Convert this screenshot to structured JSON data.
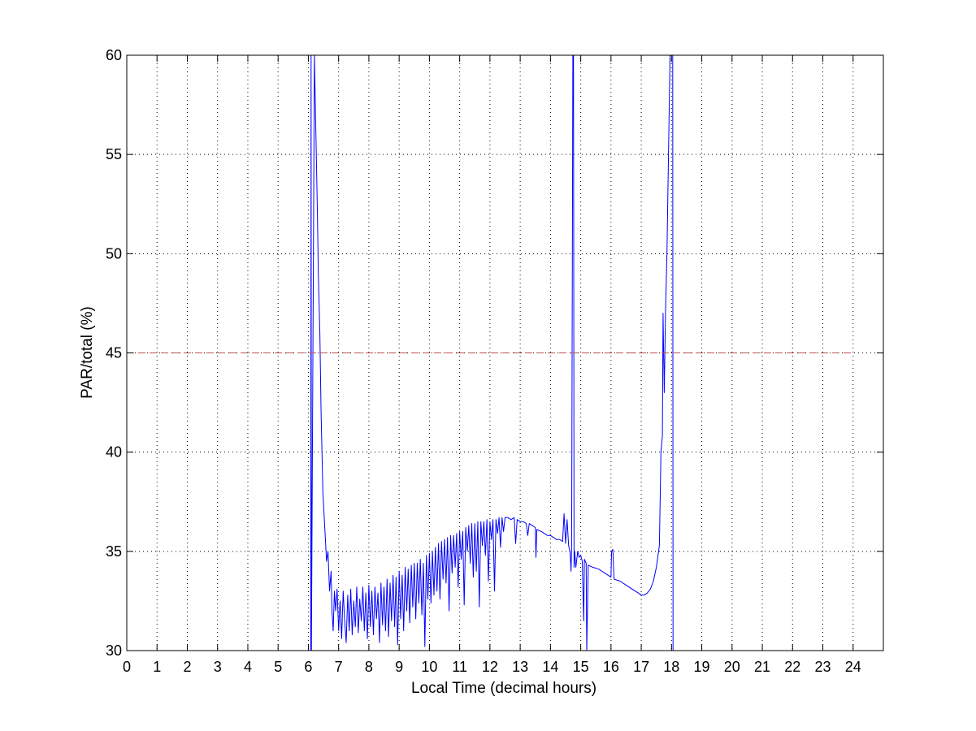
{
  "chart_data": {
    "type": "line",
    "title": "",
    "xlabel": "Local Time (decimal hours)",
    "ylabel": "PAR/total (%)",
    "xlim": [
      0,
      25
    ],
    "ylim": [
      30,
      60
    ],
    "xticks": [
      0,
      1,
      2,
      3,
      4,
      5,
      6,
      7,
      8,
      9,
      10,
      11,
      12,
      13,
      14,
      15,
      16,
      17,
      18,
      19,
      20,
      21,
      22,
      23,
      24
    ],
    "yticks": [
      30,
      35,
      40,
      45,
      50,
      55,
      60
    ],
    "grid": true,
    "legend": "none",
    "series": [
      {
        "color": "#0000ff",
        "points": [
          [
            6.08,
            30
          ],
          [
            6.09,
            60
          ],
          [
            6.1,
            30
          ],
          [
            6.2,
            60
          ],
          [
            6.3,
            52
          ],
          [
            6.33,
            49
          ],
          [
            6.38,
            46
          ],
          [
            6.42,
            42
          ],
          [
            6.48,
            38
          ],
          [
            6.55,
            36
          ],
          [
            6.6,
            34.5
          ],
          [
            6.65,
            35
          ],
          [
            6.7,
            33
          ],
          [
            6.75,
            34
          ],
          [
            6.78,
            32
          ],
          [
            6.82,
            31
          ],
          [
            6.86,
            33
          ],
          [
            6.9,
            32
          ],
          [
            6.95,
            33.1
          ],
          [
            7.0,
            31
          ],
          [
            7.05,
            32.5
          ],
          [
            7.1,
            30.6
          ],
          [
            7.15,
            33
          ],
          [
            7.2,
            31.5
          ],
          [
            7.25,
            30.4
          ],
          [
            7.3,
            32.8
          ],
          [
            7.35,
            31
          ],
          [
            7.4,
            33.1
          ],
          [
            7.45,
            30.8
          ],
          [
            7.5,
            32.5
          ],
          [
            7.55,
            31.2
          ],
          [
            7.6,
            33.2
          ],
          [
            7.65,
            30.9
          ],
          [
            7.7,
            32.6
          ],
          [
            7.75,
            31.5
          ],
          [
            7.8,
            33.2
          ],
          [
            7.85,
            31
          ],
          [
            7.9,
            32.9
          ],
          [
            7.95,
            30.6
          ],
          [
            8.0,
            33.3
          ],
          [
            8.05,
            31.2
          ],
          [
            8.1,
            33.0
          ],
          [
            8.15,
            30.8
          ],
          [
            8.2,
            33.2
          ],
          [
            8.25,
            31.6
          ],
          [
            8.3,
            32.9
          ],
          [
            8.35,
            30.4
          ],
          [
            8.4,
            33.4
          ],
          [
            8.45,
            31.3
          ],
          [
            8.5,
            33.2
          ],
          [
            8.55,
            31.0
          ],
          [
            8.6,
            33.6
          ],
          [
            8.65,
            30.7
          ],
          [
            8.7,
            33.4
          ],
          [
            8.75,
            31.5
          ],
          [
            8.8,
            33.8
          ],
          [
            8.85,
            31.2
          ],
          [
            8.9,
            33.7
          ],
          [
            8.95,
            30.3
          ],
          [
            9.0,
            34.0
          ],
          [
            9.05,
            31.6
          ],
          [
            9.1,
            33.8
          ],
          [
            9.15,
            31.0
          ],
          [
            9.2,
            34.2
          ],
          [
            9.25,
            32.0
          ],
          [
            9.3,
            34.1
          ],
          [
            9.35,
            31.4
          ],
          [
            9.4,
            34.3
          ],
          [
            9.45,
            32.2
          ],
          [
            9.5,
            34.4
          ],
          [
            9.55,
            31.6
          ],
          [
            9.6,
            34.4
          ],
          [
            9.65,
            32.4
          ],
          [
            9.7,
            34.6
          ],
          [
            9.75,
            31.8
          ],
          [
            9.8,
            34.4
          ],
          [
            9.85,
            30.2
          ],
          [
            9.9,
            34.8
          ],
          [
            9.95,
            32.6
          ],
          [
            10.0,
            34.9
          ],
          [
            10.05,
            32.4
          ],
          [
            10.1,
            35.0
          ],
          [
            10.15,
            32.8
          ],
          [
            10.2,
            35.2
          ],
          [
            10.25,
            33.0
          ],
          [
            10.3,
            35.4
          ],
          [
            10.35,
            32.6
          ],
          [
            10.4,
            35.5
          ],
          [
            10.45,
            33.6
          ],
          [
            10.5,
            35.6
          ],
          [
            10.55,
            33.4
          ],
          [
            10.6,
            35.7
          ],
          [
            10.65,
            32.0
          ],
          [
            10.7,
            35.8
          ],
          [
            10.75,
            33.9
          ],
          [
            10.8,
            35.8
          ],
          [
            10.85,
            34.2
          ],
          [
            10.9,
            35.9
          ],
          [
            10.95,
            33.2
          ],
          [
            11.0,
            36.0
          ],
          [
            11.05,
            34.6
          ],
          [
            11.1,
            36.0
          ],
          [
            11.15,
            32.3
          ],
          [
            11.2,
            36.2
          ],
          [
            11.25,
            35.0
          ],
          [
            11.3,
            36.3
          ],
          [
            11.35,
            34.4
          ],
          [
            11.4,
            36.4
          ],
          [
            11.45,
            33.7
          ],
          [
            11.5,
            36.4
          ],
          [
            11.55,
            34.0
          ],
          [
            11.6,
            36.5
          ],
          [
            11.65,
            32.2
          ],
          [
            11.7,
            36.5
          ],
          [
            11.75,
            35.3
          ],
          [
            11.8,
            36.5
          ],
          [
            11.85,
            34.8
          ],
          [
            11.9,
            36.6
          ],
          [
            11.95,
            33.5
          ],
          [
            12.0,
            36.5
          ],
          [
            12.05,
            35.6
          ],
          [
            12.1,
            36.6
          ],
          [
            12.15,
            33.0
          ],
          [
            12.2,
            36.6
          ],
          [
            12.25,
            35.9
          ],
          [
            12.3,
            36.7
          ],
          [
            12.35,
            35.2
          ],
          [
            12.4,
            36.7
          ],
          [
            12.45,
            36.0
          ],
          [
            12.5,
            36.7
          ],
          [
            12.6,
            36.7
          ],
          [
            12.7,
            36.6
          ],
          [
            12.8,
            36.7
          ],
          [
            12.85,
            35.4
          ],
          [
            12.9,
            36.6
          ],
          [
            13.0,
            36.5
          ],
          [
            13.1,
            36.5
          ],
          [
            13.2,
            36.4
          ],
          [
            13.25,
            35.8
          ],
          [
            13.3,
            36.4
          ],
          [
            13.4,
            36.3
          ],
          [
            13.5,
            36.2
          ],
          [
            13.52,
            34.7
          ],
          [
            13.55,
            36.1
          ],
          [
            13.7,
            36.0
          ],
          [
            13.8,
            35.9
          ],
          [
            13.9,
            35.8
          ],
          [
            14.0,
            35.8
          ],
          [
            14.1,
            35.7
          ],
          [
            14.2,
            35.6
          ],
          [
            14.3,
            35.6
          ],
          [
            14.4,
            35.5
          ],
          [
            14.45,
            36.9
          ],
          [
            14.5,
            35.4
          ],
          [
            14.55,
            36.6
          ],
          [
            14.6,
            35.3
          ],
          [
            14.65,
            34.9
          ],
          [
            14.68,
            34.0
          ],
          [
            14.7,
            35.2
          ],
          [
            14.72,
            48
          ],
          [
            14.74,
            60
          ],
          [
            14.76,
            60
          ],
          [
            14.78,
            34.2
          ],
          [
            14.8,
            35.0
          ],
          [
            14.84,
            34.2
          ],
          [
            14.9,
            35.0
          ],
          [
            14.95,
            34.7
          ],
          [
            15.0,
            34.8
          ],
          [
            15.05,
            34.5
          ],
          [
            15.1,
            31.5
          ],
          [
            15.12,
            34.6
          ],
          [
            15.18,
            34.4
          ],
          [
            15.2,
            30
          ],
          [
            15.25,
            34.3
          ],
          [
            15.4,
            34.2
          ],
          [
            15.6,
            34.1
          ],
          [
            15.8,
            33.9
          ],
          [
            16.0,
            33.7
          ],
          [
            16.02,
            35.0
          ],
          [
            16.06,
            35.1
          ],
          [
            16.1,
            33.6
          ],
          [
            16.3,
            33.5
          ],
          [
            16.5,
            33.3
          ],
          [
            16.7,
            33.1
          ],
          [
            16.9,
            32.9
          ],
          [
            17.0,
            32.8
          ],
          [
            17.1,
            32.8
          ],
          [
            17.2,
            32.9
          ],
          [
            17.3,
            33.1
          ],
          [
            17.4,
            33.5
          ],
          [
            17.5,
            34.2
          ],
          [
            17.6,
            35.3
          ],
          [
            17.65,
            40.0
          ],
          [
            17.7,
            40.8
          ],
          [
            17.72,
            47.0
          ],
          [
            17.76,
            43.0
          ],
          [
            17.8,
            47.0
          ],
          [
            17.85,
            50.0
          ],
          [
            17.9,
            55.0
          ],
          [
            17.95,
            60
          ],
          [
            18.04,
            60
          ],
          [
            18.05,
            30
          ]
        ]
      },
      {
        "color": "#c0504d",
        "style": "dashed",
        "points": [
          [
            0,
            45
          ],
          [
            24,
            45
          ]
        ]
      }
    ]
  }
}
